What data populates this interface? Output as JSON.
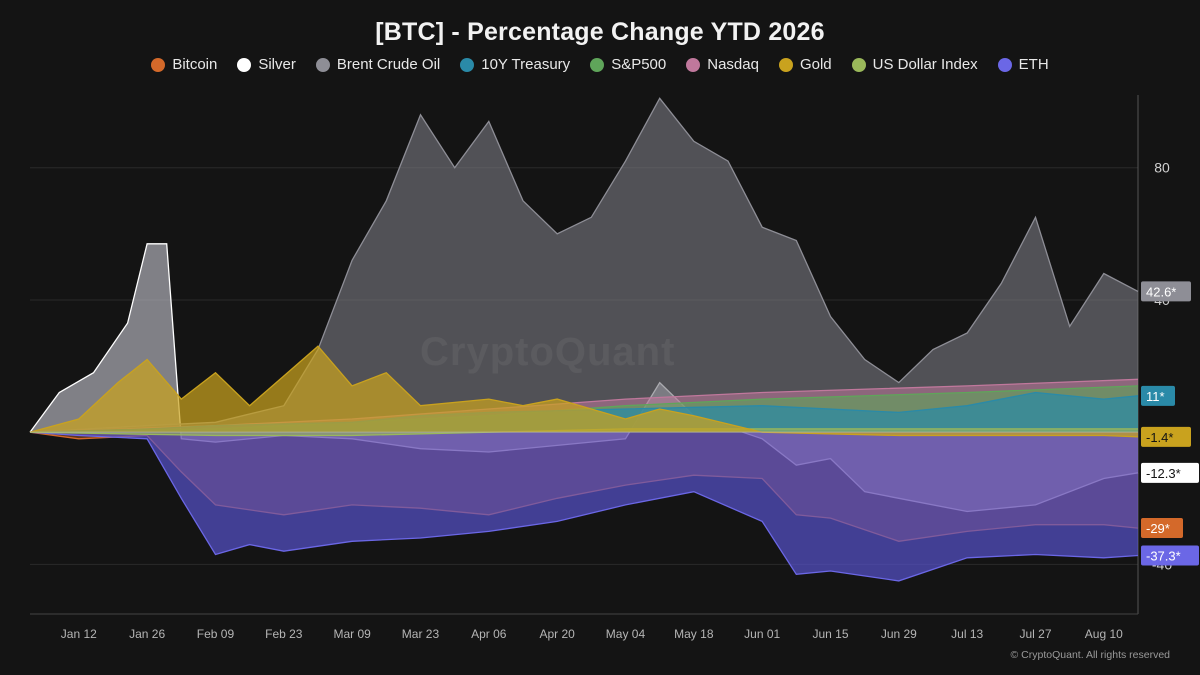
{
  "title": "[BTC] - Percentage Change YTD 2026",
  "watermark": "CryptoQuant",
  "footer": "© CryptoQuant. All rights reserved",
  "chart_data": {
    "type": "area",
    "title": "[BTC] - Percentage Change YTD 2026",
    "xlabel": "",
    "ylabel": "",
    "x_start": "2026-01-02",
    "x_end": "2026-08-17",
    "xtick_labels": [
      "Jan 12",
      "Jan 26",
      "Feb 09",
      "Feb 23",
      "Mar 09",
      "Mar 23",
      "Apr 06",
      "Apr 20",
      "May 04",
      "May 18",
      "Jun 01",
      "Jun 15",
      "Jun 29",
      "Jul 13",
      "Jul 27",
      "Aug 10"
    ],
    "xtick_dates": [
      "2026-01-12",
      "2026-01-26",
      "2026-02-09",
      "2026-02-23",
      "2026-03-09",
      "2026-03-23",
      "2026-04-06",
      "2026-04-20",
      "2026-05-04",
      "2026-05-18",
      "2026-06-01",
      "2026-06-15",
      "2026-06-29",
      "2026-07-13",
      "2026-07-27",
      "2026-08-10"
    ],
    "y_ticks": [
      80,
      40,
      -40
    ],
    "ylim": [
      -55,
      102
    ],
    "grid": true,
    "legend_position": "top-center",
    "series": [
      {
        "name": "Bitcoin",
        "color": "#d4692a",
        "fill": "rgba(212,105,42,0.40)",
        "end_label": "-29*",
        "points": [
          [
            "2026-01-02",
            0
          ],
          [
            "2026-01-12",
            -2
          ],
          [
            "2026-01-26",
            -1
          ],
          [
            "2026-02-02",
            -12
          ],
          [
            "2026-02-09",
            -22
          ],
          [
            "2026-02-23",
            -25
          ],
          [
            "2026-03-09",
            -22
          ],
          [
            "2026-03-23",
            -23
          ],
          [
            "2026-04-06",
            -25
          ],
          [
            "2026-04-20",
            -20
          ],
          [
            "2026-05-04",
            -16
          ],
          [
            "2026-05-18",
            -13
          ],
          [
            "2026-06-01",
            -14
          ],
          [
            "2026-06-08",
            -25
          ],
          [
            "2026-06-15",
            -26
          ],
          [
            "2026-06-29",
            -33
          ],
          [
            "2026-07-13",
            -30
          ],
          [
            "2026-07-27",
            -28
          ],
          [
            "2026-08-10",
            -28
          ],
          [
            "2026-08-17",
            -29
          ]
        ]
      },
      {
        "name": "Silver",
        "color": "#ffffff",
        "fill": "rgba(200,200,210,0.60)",
        "end_label": "-12.3*",
        "points": [
          [
            "2026-01-02",
            0
          ],
          [
            "2026-01-08",
            12
          ],
          [
            "2026-01-15",
            18
          ],
          [
            "2026-01-22",
            33
          ],
          [
            "2026-01-26",
            57
          ],
          [
            "2026-01-30",
            57
          ],
          [
            "2026-02-02",
            -2
          ],
          [
            "2026-02-09",
            -3
          ],
          [
            "2026-02-23",
            -1
          ],
          [
            "2026-03-09",
            -2
          ],
          [
            "2026-03-23",
            -5
          ],
          [
            "2026-04-06",
            -6
          ],
          [
            "2026-04-20",
            -4
          ],
          [
            "2026-05-04",
            -2
          ],
          [
            "2026-05-11",
            15
          ],
          [
            "2026-05-18",
            5
          ],
          [
            "2026-06-01",
            -2
          ],
          [
            "2026-06-08",
            -10
          ],
          [
            "2026-06-15",
            -8
          ],
          [
            "2026-06-22",
            -18
          ],
          [
            "2026-06-29",
            -20
          ],
          [
            "2026-07-13",
            -24
          ],
          [
            "2026-07-27",
            -22
          ],
          [
            "2026-08-10",
            -14
          ],
          [
            "2026-08-17",
            -12.3
          ]
        ]
      },
      {
        "name": "Brent Crude Oil",
        "color": "#8e8e96",
        "fill": "rgba(120,120,128,0.62)",
        "end_label": "42.6*",
        "points": [
          [
            "2026-01-02",
            0
          ],
          [
            "2026-01-26",
            2
          ],
          [
            "2026-02-09",
            3
          ],
          [
            "2026-02-23",
            8
          ],
          [
            "2026-03-02",
            25
          ],
          [
            "2026-03-09",
            52
          ],
          [
            "2026-03-16",
            70
          ],
          [
            "2026-03-23",
            96
          ],
          [
            "2026-03-30",
            80
          ],
          [
            "2026-04-06",
            94
          ],
          [
            "2026-04-13",
            70
          ],
          [
            "2026-04-20",
            60
          ],
          [
            "2026-04-27",
            65
          ],
          [
            "2026-05-04",
            82
          ],
          [
            "2026-05-11",
            101
          ],
          [
            "2026-05-18",
            88
          ],
          [
            "2026-05-25",
            82
          ],
          [
            "2026-06-01",
            62
          ],
          [
            "2026-06-08",
            58
          ],
          [
            "2026-06-15",
            35
          ],
          [
            "2026-06-22",
            22
          ],
          [
            "2026-06-29",
            15
          ],
          [
            "2026-07-06",
            25
          ],
          [
            "2026-07-13",
            30
          ],
          [
            "2026-07-20",
            45
          ],
          [
            "2026-07-27",
            65
          ],
          [
            "2026-08-03",
            32
          ],
          [
            "2026-08-10",
            48
          ],
          [
            "2026-08-17",
            42.6
          ]
        ]
      },
      {
        "name": "10Y Treasury",
        "color": "#2a8aa8",
        "fill": "rgba(42,138,168,0.70)",
        "end_label": "11*",
        "points": [
          [
            "2026-01-02",
            0
          ],
          [
            "2026-01-26",
            1
          ],
          [
            "2026-02-09",
            2
          ],
          [
            "2026-03-09",
            3
          ],
          [
            "2026-03-23",
            5
          ],
          [
            "2026-04-06",
            6
          ],
          [
            "2026-05-04",
            7
          ],
          [
            "2026-06-01",
            8
          ],
          [
            "2026-06-29",
            6
          ],
          [
            "2026-07-13",
            8
          ],
          [
            "2026-07-27",
            12
          ],
          [
            "2026-08-10",
            10
          ],
          [
            "2026-08-17",
            11
          ]
        ]
      },
      {
        "name": "S&P500",
        "color": "#5fa55a",
        "fill": "rgba(95,165,90,0.60)",
        "end_label": "",
        "points": [
          [
            "2026-01-02",
            0
          ],
          [
            "2026-02-09",
            1
          ],
          [
            "2026-03-09",
            3
          ],
          [
            "2026-04-06",
            5
          ],
          [
            "2026-05-04",
            8
          ],
          [
            "2026-06-01",
            10
          ],
          [
            "2026-07-13",
            12
          ],
          [
            "2026-08-17",
            14
          ]
        ]
      },
      {
        "name": "Nasdaq",
        "color": "#c0789c",
        "fill": "rgba(192,120,156,0.55)",
        "end_label": "",
        "points": [
          [
            "2026-01-02",
            0
          ],
          [
            "2026-02-09",
            2
          ],
          [
            "2026-03-09",
            4
          ],
          [
            "2026-04-06",
            7
          ],
          [
            "2026-05-04",
            10
          ],
          [
            "2026-06-01",
            12
          ],
          [
            "2026-07-13",
            14
          ],
          [
            "2026-08-17",
            16
          ]
        ]
      },
      {
        "name": "Gold",
        "color": "#c9a21e",
        "fill": "rgba(201,162,30,0.72)",
        "end_label": "-1.4*",
        "points": [
          [
            "2026-01-02",
            0
          ],
          [
            "2026-01-12",
            4
          ],
          [
            "2026-01-20",
            15
          ],
          [
            "2026-01-26",
            22
          ],
          [
            "2026-02-02",
            10
          ],
          [
            "2026-02-09",
            18
          ],
          [
            "2026-02-16",
            8
          ],
          [
            "2026-02-23",
            17
          ],
          [
            "2026-03-02",
            26
          ],
          [
            "2026-03-09",
            14
          ],
          [
            "2026-03-16",
            18
          ],
          [
            "2026-03-23",
            8
          ],
          [
            "2026-04-06",
            10
          ],
          [
            "2026-04-13",
            8
          ],
          [
            "2026-04-20",
            10
          ],
          [
            "2026-05-04",
            4
          ],
          [
            "2026-05-11",
            7
          ],
          [
            "2026-05-18",
            5
          ],
          [
            "2026-06-01",
            0
          ],
          [
            "2026-06-29",
            -1
          ],
          [
            "2026-07-13",
            -1
          ],
          [
            "2026-08-10",
            -1
          ],
          [
            "2026-08-17",
            -1.4
          ]
        ]
      },
      {
        "name": "US Dollar Index",
        "color": "#9ab85a",
        "fill": "rgba(154,184,90,0.60)",
        "end_label": "",
        "points": [
          [
            "2026-01-02",
            0
          ],
          [
            "2026-02-09",
            -1
          ],
          [
            "2026-03-09",
            -1
          ],
          [
            "2026-04-06",
            0
          ],
          [
            "2026-05-04",
            1
          ],
          [
            "2026-06-01",
            1
          ],
          [
            "2026-07-13",
            1
          ],
          [
            "2026-08-17",
            1
          ]
        ]
      },
      {
        "name": "ETH",
        "color": "#6b67e6",
        "fill": "rgba(88,84,210,0.68)",
        "end_label": "-37.3*",
        "points": [
          [
            "2026-01-02",
            0
          ],
          [
            "2026-01-12",
            -1
          ],
          [
            "2026-01-26",
            -2
          ],
          [
            "2026-02-02",
            -20
          ],
          [
            "2026-02-09",
            -37
          ],
          [
            "2026-02-16",
            -34
          ],
          [
            "2026-02-23",
            -36
          ],
          [
            "2026-03-09",
            -33
          ],
          [
            "2026-03-23",
            -32
          ],
          [
            "2026-04-06",
            -30
          ],
          [
            "2026-04-20",
            -27
          ],
          [
            "2026-05-04",
            -22
          ],
          [
            "2026-05-18",
            -18
          ],
          [
            "2026-06-01",
            -27
          ],
          [
            "2026-06-08",
            -43
          ],
          [
            "2026-06-15",
            -42
          ],
          [
            "2026-06-29",
            -45
          ],
          [
            "2026-07-13",
            -38
          ],
          [
            "2026-07-27",
            -37
          ],
          [
            "2026-08-10",
            -38
          ],
          [
            "2026-08-17",
            -37.3
          ]
        ]
      }
    ]
  }
}
